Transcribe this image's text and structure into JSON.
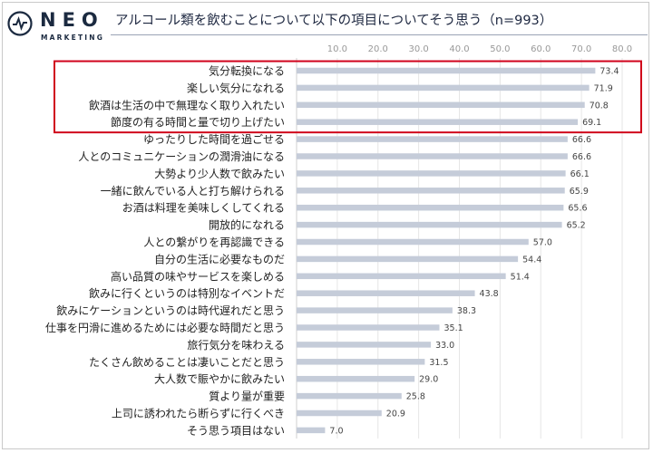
{
  "brand": {
    "name": "NEO",
    "sub": "MARKETING",
    "accent": "#1b2a40"
  },
  "title": "アルコール類を飲むことについて以下の項目についてそう思う（n=993）",
  "chart_data": {
    "type": "bar",
    "orientation": "horizontal",
    "title": "アルコール類を飲むことについて以下の項目についてそう思う（n=993）",
    "xlim": [
      0,
      80
    ],
    "ticks": [
      "10.0",
      "20.0",
      "30.0",
      "40.0",
      "50.0",
      "60.0",
      "70.0",
      "80.0"
    ],
    "grid": true,
    "bar_color": "#c5ccd9",
    "highlight_color": "#d0021b",
    "highlighted_count": 4,
    "categories": [
      "気分転換になる",
      "楽しい気分になれる",
      "飲酒は生活の中で無理なく取り入れたい",
      "節度の有る時間と量で切り上げたい",
      "ゆったりした時間を過ごせる",
      "人とのコミュニケーションの潤滑油になる",
      "大勢より少人数で飲みたい",
      "一緒に飲んでいる人と打ち解けられる",
      "お酒は料理を美味しくしてくれる",
      "開放的になれる",
      "人との繋がりを再認識できる",
      "自分の生活に必要なものだ",
      "高い品質の味やサービスを楽しめる",
      "飲みに行くというのは特別なイベントだ",
      "飲みにケーションというのは時代遅れだと思う",
      "仕事を円滑に進めるためには必要な時間だと思う",
      "旅行気分を味わえる",
      "たくさん飲めることは凄いことだと思う",
      "大人数で賑やかに飲みたい",
      "質より量が重要",
      "上司に誘われたら断らずに行くべき",
      "そう思う項目はない"
    ],
    "values": [
      73.4,
      71.9,
      70.8,
      69.1,
      66.6,
      66.6,
      66.1,
      65.9,
      65.6,
      65.2,
      57.0,
      54.4,
      51.4,
      43.8,
      38.3,
      35.1,
      33.0,
      31.5,
      29.0,
      25.8,
      20.9,
      7.0
    ]
  }
}
